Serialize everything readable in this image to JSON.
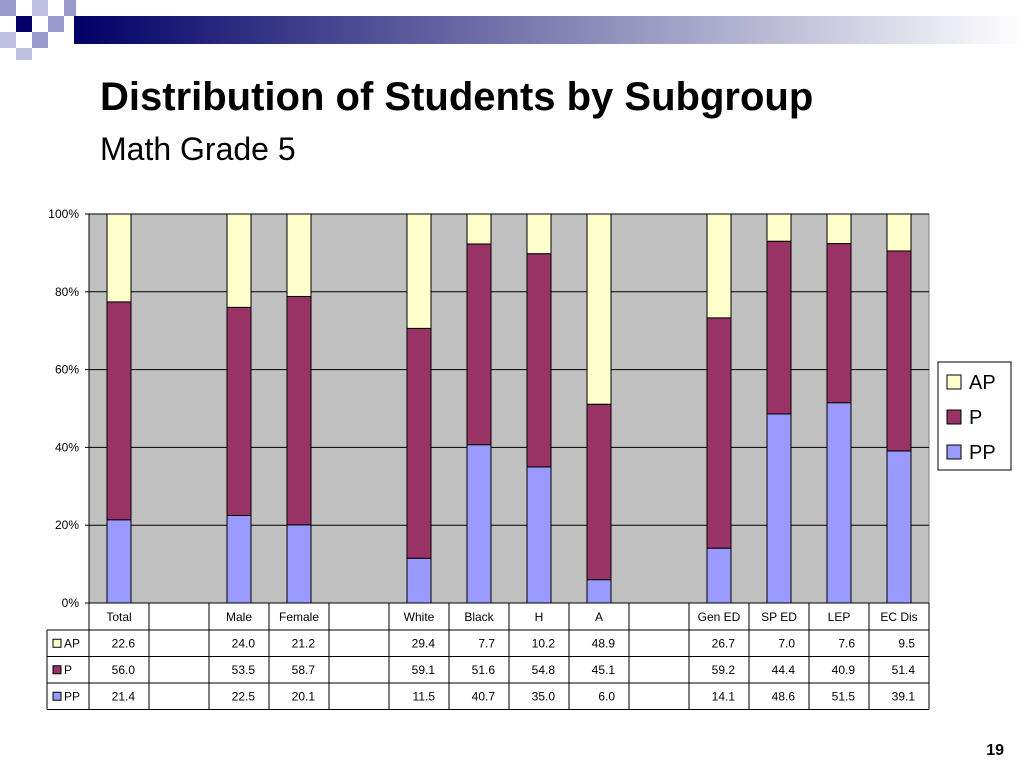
{
  "slide": {
    "title": "Distribution of Students by Subgroup",
    "subtitle": "Math Grade 5",
    "page_number": "19"
  },
  "colors": {
    "AP": "#FFFFCC",
    "P": "#993366",
    "PP": "#9999FF",
    "plot_bg": "#C0C0C0",
    "deco_dark": "#000066",
    "deco_light": "#9999CC"
  },
  "chart_data": {
    "type": "bar",
    "stacked": true,
    "stack_mode": "percent",
    "categories": [
      "Total",
      "",
      "Male",
      "Female",
      "",
      "White",
      "Black",
      "H",
      "A",
      "",
      "Gen ED",
      "SP ED",
      "LEP",
      "EC Dis"
    ],
    "series": [
      {
        "name": "PP",
        "values": [
          21.4,
          null,
          22.5,
          20.1,
          null,
          11.5,
          40.7,
          35.0,
          6.0,
          null,
          14.1,
          48.6,
          51.5,
          39.1
        ]
      },
      {
        "name": "P",
        "values": [
          56.0,
          null,
          53.5,
          58.7,
          null,
          59.1,
          51.6,
          54.8,
          45.1,
          null,
          59.2,
          44.4,
          40.9,
          51.4
        ]
      },
      {
        "name": "AP",
        "values": [
          22.6,
          null,
          24.0,
          21.2,
          null,
          29.4,
          7.7,
          10.2,
          48.9,
          null,
          26.7,
          7.0,
          7.6,
          9.5
        ]
      }
    ],
    "ylim": [
      0,
      100
    ],
    "y_ticks": [
      "0%",
      "20%",
      "40%",
      "60%",
      "80%",
      "100%"
    ],
    "grid": true,
    "legend": {
      "position": "right",
      "order": [
        "AP",
        "P",
        "PP"
      ]
    },
    "data_table": {
      "row_order": [
        "AP",
        "P",
        "PP"
      ],
      "rows": {
        "AP": [
          "22.6",
          "",
          "24.0",
          "21.2",
          "",
          "29.4",
          "7.7",
          "10.2",
          "48.9",
          "",
          "26.7",
          "7.0",
          "7.6",
          "9.5"
        ],
        "P": [
          "56.0",
          "",
          "53.5",
          "58.7",
          "",
          "59.1",
          "51.6",
          "54.8",
          "45.1",
          "",
          "59.2",
          "44.4",
          "40.9",
          "51.4"
        ],
        "PP": [
          "21.4",
          "",
          "22.5",
          "20.1",
          "",
          "11.5",
          "40.7",
          "35.0",
          "6.0",
          "",
          "14.1",
          "48.6",
          "51.5",
          "39.1"
        ]
      }
    }
  }
}
